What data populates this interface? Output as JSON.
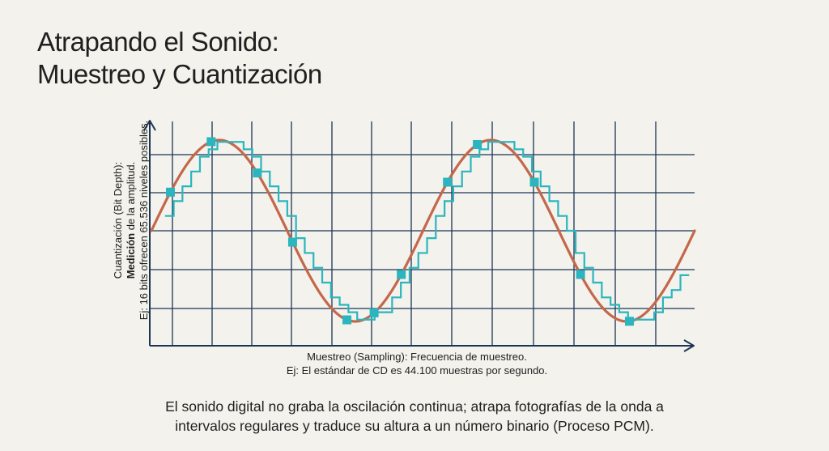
{
  "title": {
    "line1": "Atrapando el Sonido:",
    "line2": "Muestreo y Cuantización"
  },
  "y_axis_label": {
    "line1": "Cuantización (Bit Depth):",
    "line2_bold": "Medición",
    "line2_rest": " de la amplitud.",
    "line3": "Ej: 16 bits ofrecen 65.536 niveles posibles."
  },
  "x_axis_label": {
    "line1": "Muestreo (Sampling): Frecuencia de muestreo.",
    "line2": "Ej: El estándar de CD es 44.100 muestras por segundo."
  },
  "caption": {
    "line1": "El sonido digital no graba la oscilación continua; atrapa fotografías de la onda a",
    "line2": "intervalos regulares y traduce su altura a un número binario (Proceso PCM)."
  },
  "colors": {
    "wave": "#c4674a",
    "samples": "#2bb5be",
    "grid": "#1c3556",
    "background": "#f3f2ec"
  },
  "chart_data": {
    "type": "line",
    "x_range": [
      0,
      1
    ],
    "y_range": [
      -1,
      1
    ],
    "grid": true,
    "wave_cycles": 2,
    "series": [
      {
        "kind": "continuous-wave",
        "function": "sine"
      },
      {
        "kind": "quantized-steps",
        "levels": 24
      },
      {
        "kind": "sample-points",
        "x": [
          0.035,
          0.11,
          0.195,
          0.26,
          0.36,
          0.41,
          0.46,
          0.545,
          0.6,
          0.705,
          0.79,
          0.88
        ]
      }
    ]
  }
}
